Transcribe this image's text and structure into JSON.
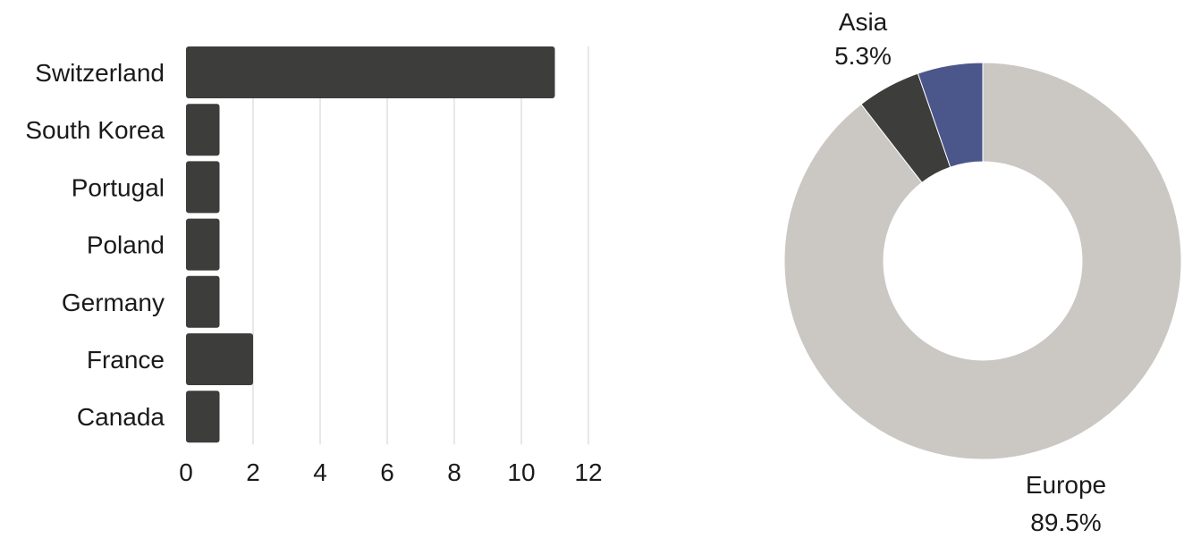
{
  "chart_data": [
    {
      "type": "bar",
      "orientation": "horizontal",
      "categories": [
        "Switzerland",
        "South Korea",
        "Portugal",
        "Poland",
        "Germany",
        "France",
        "Canada"
      ],
      "values": [
        11,
        1,
        1,
        1,
        1,
        2,
        1
      ],
      "xlim": [
        0,
        12
      ],
      "x_ticks": [
        0,
        2,
        4,
        6,
        8,
        10,
        12
      ],
      "grid": "vertical",
      "colors": {
        "bar": "#3d3d3c",
        "grid": "#d0d0d0"
      }
    },
    {
      "type": "pie",
      "style": "donut",
      "slices": [
        {
          "name": "Europe",
          "percent": 89.5,
          "label": "89.5%",
          "color": "#cbc8c4",
          "labeled": true
        },
        {
          "name": "",
          "percent": 5.2,
          "label": "",
          "color": "#3d3d3c",
          "labeled": false
        },
        {
          "name": "Asia",
          "percent": 5.3,
          "label": "5.3%",
          "color": "#4b578a",
          "labeled": true
        }
      ]
    }
  ]
}
